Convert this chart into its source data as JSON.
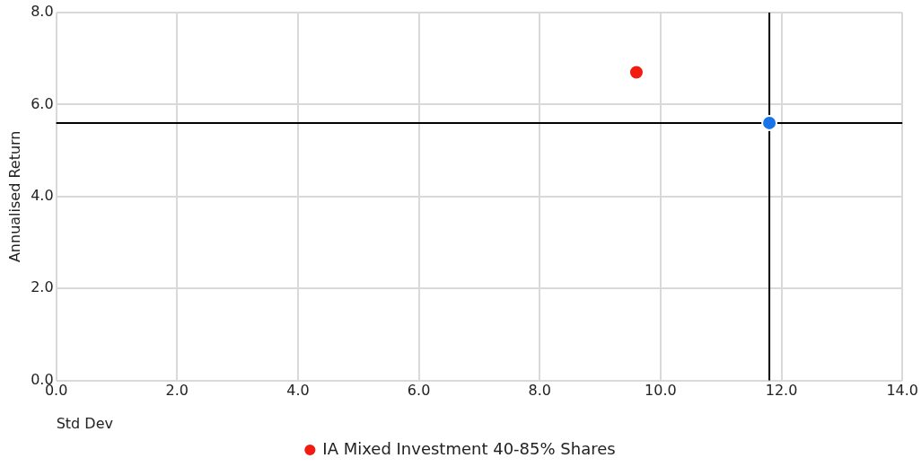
{
  "chart_data": {
    "type": "scatter",
    "xlabel": "Std Dev",
    "ylabel": "Annualised Return",
    "series": [
      {
        "color": "#1a73e8",
        "x": [
          11.8
        ],
        "values": [
          5.6
        ]
      },
      {
        "name": "IA Mixed Investment 40-85% Shares",
        "color": "#f21b0f",
        "x": [
          9.6
        ],
        "values": [
          6.7
        ]
      }
    ],
    "xlim": [
      0,
      14
    ],
    "xticks": [
      {
        "value": 0,
        "label": "0.0"
      },
      {
        "value": 2,
        "label": "2.0"
      },
      {
        "value": 4,
        "label": "4.0"
      },
      {
        "value": 6,
        "label": "6.0"
      },
      {
        "value": 8,
        "label": "8.0"
      },
      {
        "value": 10,
        "label": "10.0"
      },
      {
        "value": 12,
        "label": "12.0"
      },
      {
        "value": 14,
        "label": "14.0"
      }
    ],
    "ylim": [
      0,
      8
    ],
    "yticks": [
      {
        "value": 0,
        "label": "0.0"
      },
      {
        "value": 2,
        "label": "2.0"
      },
      {
        "value": 4,
        "label": "4.0"
      },
      {
        "value": 6,
        "label": "6.0"
      },
      {
        "value": 8,
        "label": "8.0"
      }
    ],
    "ref_lines": [
      {
        "axis": "x",
        "value": 11.8,
        "color": "#000000"
      },
      {
        "axis": "y",
        "value": 5.6,
        "color": "#000000"
      }
    ],
    "grid": true,
    "legend": "bottom",
    "marker": "circle"
  }
}
